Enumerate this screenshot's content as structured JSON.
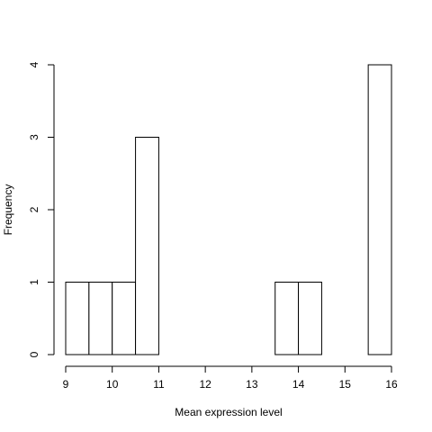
{
  "chart_data": {
    "type": "bar",
    "subtype": "histogram",
    "title": "",
    "xlabel": "Mean expression level",
    "ylabel": "Frequency",
    "bin_edges": [
      9,
      9.5,
      10,
      10.5,
      11,
      11.5,
      12,
      12.5,
      13,
      13.5,
      14,
      14.5,
      15,
      15.5,
      16
    ],
    "values": [
      1,
      1,
      1,
      3,
      0,
      0,
      0,
      0,
      0,
      1,
      1,
      0,
      0,
      4
    ],
    "xlim": [
      9,
      16
    ],
    "ylim": [
      0,
      4
    ],
    "x_ticks": [
      "9",
      "10",
      "11",
      "12",
      "13",
      "14",
      "15",
      "16"
    ],
    "y_ticks": [
      "0",
      "1",
      "2",
      "3",
      "4"
    ],
    "grid": false,
    "legend": "none",
    "colors": {
      "bar_fill": "#ffffff",
      "bar_stroke": "#000000"
    }
  }
}
